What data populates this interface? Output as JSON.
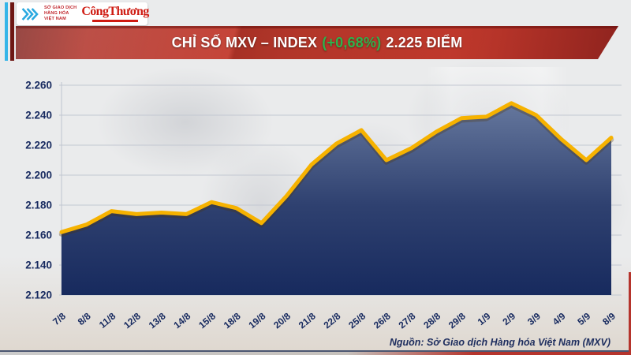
{
  "header": {
    "mxv_logo": {
      "line1": "SỞ GIAO DỊCH",
      "line2": "HÀNG HÓA",
      "line3": "VIỆT NAM"
    },
    "congthuong_logo": "CôngThương"
  },
  "banner": {
    "title_main": "CHỈ SỐ MXV – INDEX",
    "title_change": "(+0,68%)",
    "title_value": "2.225 ĐIỂM",
    "bg_color": "#c23a2d",
    "change_color": "#2eb34d"
  },
  "chart_data": {
    "type": "area",
    "title": "CHỈ SỐ MXV – INDEX",
    "unit": "điểm",
    "categories": [
      "7/8",
      "8/8",
      "11/8",
      "12/8",
      "13/8",
      "14/8",
      "15/8",
      "18/8",
      "19/8",
      "20/8",
      "21/8",
      "22/8",
      "25/8",
      "26/8",
      "27/8",
      "28/8",
      "29/8",
      "1/9",
      "2/9",
      "3/9",
      "4/9",
      "5/9",
      "8/9"
    ],
    "values": [
      2162,
      2167,
      2176,
      2174,
      2175,
      2174,
      2182,
      2178,
      2168,
      2186,
      2207,
      2221,
      2230,
      2210,
      2218,
      2229,
      2238,
      2239,
      2248,
      2240,
      2224,
      2210,
      2225
    ],
    "last_value_label": "2.225",
    "change_pct_label": "+0,68%",
    "ylim": [
      2120,
      2260
    ],
    "ytick_step": 20,
    "ytick_labels": [
      "2.120",
      "2.140",
      "2.160",
      "2.180",
      "2.200",
      "2.220",
      "2.240",
      "2.260"
    ],
    "xlabel": "",
    "ylabel": "",
    "grid": true,
    "legend": false,
    "line_color": "#f6b200",
    "line_shadow": "rgba(80,50,0,0.28)",
    "fill_gradient": [
      "#6a7ca1",
      "#2f4170",
      "#172a5e"
    ],
    "label_color": "#16295f",
    "grid_color": "#c3c8d2"
  },
  "footer": {
    "source": "Nguồn: Sở Giao dịch Hàng hóa Việt Nam (MXV)"
  }
}
